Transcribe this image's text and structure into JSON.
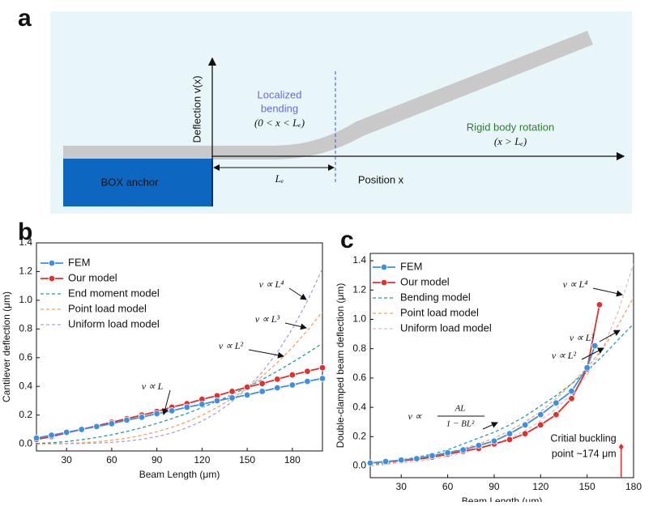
{
  "panel_a": {
    "label": "a",
    "anchor": "BOX anchor",
    "y_axis": "Deflection v(x)",
    "x_axis": "Position x",
    "length": "Lₑ",
    "local_title": [
      "Localized",
      "bending"
    ],
    "local_cond": "(0 < x < Lₑ)",
    "rigid_title": "Rigid body rotation",
    "rigid_cond": "(x > Lₑ)"
  },
  "chart_data": [
    {
      "type": "line",
      "label": "b",
      "x_label": "Beam Length (μm)",
      "y_label": "Cantilever deflection (μm)",
      "xlim": [
        10,
        200
      ],
      "ylim": [
        -0.05,
        1.4
      ],
      "xticks": [
        30,
        60,
        90,
        120,
        150,
        180
      ],
      "yticks": [
        {
          "value": 0,
          "label": "0.0"
        },
        0.2,
        0.4,
        0.6,
        0.8,
        {
          "value": 1,
          "label": "1.0"
        },
        1.2,
        1.4
      ],
      "legend": "upper-left",
      "series": [
        {
          "name": "FEM",
          "color": "#3d8fe0",
          "marker": true,
          "dash": false,
          "x": [
            10,
            20,
            30,
            40,
            50,
            60,
            70,
            80,
            90,
            100,
            110,
            120,
            130,
            140,
            150,
            160,
            170,
            180,
            190,
            200
          ],
          "values": [
            0.04,
            0.06,
            0.08,
            0.1,
            0.12,
            0.14,
            0.165,
            0.185,
            0.21,
            0.23,
            0.255,
            0.275,
            0.3,
            0.32,
            0.34,
            0.365,
            0.39,
            0.41,
            0.435,
            0.455
          ]
        },
        {
          "name": "Our model",
          "color": "#e0312f",
          "marker": true,
          "dash": false,
          "x": [
            10,
            20,
            30,
            40,
            50,
            60,
            70,
            80,
            90,
            100,
            110,
            120,
            130,
            140,
            150,
            160,
            170,
            180,
            190,
            200
          ],
          "values": [
            0.03,
            0.05,
            0.075,
            0.1,
            0.125,
            0.15,
            0.175,
            0.2,
            0.225,
            0.255,
            0.28,
            0.31,
            0.335,
            0.365,
            0.395,
            0.42,
            0.45,
            0.48,
            0.505,
            0.53
          ]
        },
        {
          "name": "End  moment model",
          "color": "#2a9d8f",
          "marker": false,
          "dash": true,
          "x": [
            10,
            20,
            30,
            40,
            50,
            60,
            70,
            80,
            90,
            100,
            110,
            120,
            130,
            140,
            150,
            160,
            170,
            180,
            190,
            200
          ],
          "values": [
            0.002,
            0.007,
            0.016,
            0.028,
            0.044,
            0.063,
            0.086,
            0.112,
            0.142,
            0.175,
            0.212,
            0.252,
            0.296,
            0.343,
            0.394,
            0.448,
            0.506,
            0.567,
            0.632,
            0.7
          ]
        },
        {
          "name": "Point load model",
          "color": "#f4a261",
          "marker": false,
          "dash": true,
          "x": [
            10,
            20,
            30,
            40,
            50,
            60,
            70,
            80,
            90,
            100,
            110,
            120,
            130,
            140,
            150,
            160,
            170,
            180,
            190,
            200
          ],
          "values": [
            0,
            0.001,
            0.003,
            0.007,
            0.014,
            0.025,
            0.039,
            0.059,
            0.084,
            0.115,
            0.153,
            0.199,
            0.253,
            0.316,
            0.388,
            0.471,
            0.565,
            0.671,
            0.789,
            0.92
          ]
        },
        {
          "name": "Uniform load model",
          "color": "#a9a3d6",
          "marker": false,
          "dash": true,
          "x": [
            10,
            20,
            30,
            40,
            50,
            60,
            70,
            80,
            90,
            100,
            110,
            120,
            130,
            140,
            150,
            160,
            170,
            180,
            190,
            200
          ],
          "values": [
            0,
            0,
            0.001,
            0.002,
            0.005,
            0.01,
            0.018,
            0.031,
            0.05,
            0.076,
            0.112,
            0.158,
            0.218,
            0.293,
            0.386,
            0.5,
            0.637,
            0.8,
            0.994,
            1.22
          ]
        }
      ],
      "annotations": [
        "v ∝ L",
        "v ∝ L²",
        "v ∝ L³",
        "v ∝ L⁴"
      ]
    },
    {
      "type": "line",
      "label": "c",
      "x_label": "Beam Length (μm)",
      "y_label": "Double-clamped beam deflection (μm)",
      "xlim": [
        10,
        180
      ],
      "ylim": [
        -0.08,
        1.45
      ],
      "xticks": [
        30,
        60,
        90,
        120,
        150,
        180
      ],
      "yticks": [
        {
          "value": 0,
          "label": "0.0"
        },
        0.2,
        0.4,
        0.6,
        0.8,
        {
          "value": 1,
          "label": "1.0"
        },
        1.2,
        1.4
      ],
      "legend": "upper-left",
      "series": [
        {
          "name": "FEM",
          "color": "#3d8fe0",
          "marker": true,
          "dash": false,
          "x": [
            10,
            20,
            30,
            40,
            50,
            60,
            70,
            80,
            90,
            100,
            110,
            120,
            130,
            140,
            150,
            155
          ],
          "values": [
            0.02,
            0.03,
            0.04,
            0.05,
            0.07,
            0.09,
            0.11,
            0.14,
            0.17,
            0.22,
            0.28,
            0.35,
            0.43,
            0.51,
            0.67,
            0.82
          ]
        },
        {
          "name": "Our model",
          "color": "#e0312f",
          "marker": true,
          "dash": false,
          "x": [
            10,
            20,
            30,
            40,
            50,
            60,
            70,
            80,
            90,
            100,
            110,
            120,
            130,
            140,
            150,
            158
          ],
          "values": [
            0.02,
            0.03,
            0.035,
            0.045,
            0.06,
            0.08,
            0.1,
            0.12,
            0.15,
            0.18,
            0.22,
            0.28,
            0.35,
            0.46,
            0.66,
            1.1
          ]
        },
        {
          "name": "Bending model",
          "color": "#2a9d8f",
          "marker": false,
          "dash": true,
          "x": [
            10,
            20,
            30,
            40,
            50,
            60,
            70,
            80,
            90,
            100,
            110,
            120,
            130,
            140,
            150,
            160,
            170,
            180
          ],
          "values": [
            0.01,
            0.02,
            0.04,
            0.06,
            0.08,
            0.11,
            0.15,
            0.19,
            0.23,
            0.28,
            0.34,
            0.41,
            0.48,
            0.56,
            0.65,
            0.75,
            0.86,
            0.97
          ]
        },
        {
          "name": "Point load model",
          "color": "#f4a261",
          "marker": false,
          "dash": true,
          "x": [
            10,
            20,
            30,
            40,
            50,
            60,
            70,
            80,
            90,
            100,
            110,
            120,
            130,
            140,
            150,
            160,
            170,
            180
          ],
          "values": [
            0.01,
            0.015,
            0.03,
            0.045,
            0.065,
            0.09,
            0.12,
            0.15,
            0.19,
            0.24,
            0.3,
            0.37,
            0.46,
            0.56,
            0.67,
            0.8,
            0.96,
            1.15
          ]
        },
        {
          "name": "Uniform load model",
          "color": "#e3bcc4",
          "marker": false,
          "dash": true,
          "x": [
            10,
            20,
            30,
            40,
            50,
            60,
            70,
            80,
            90,
            100,
            110,
            120,
            130,
            140,
            150,
            160,
            170,
            180
          ],
          "values": [
            0,
            0.01,
            0.02,
            0.03,
            0.045,
            0.065,
            0.09,
            0.12,
            0.15,
            0.19,
            0.24,
            0.31,
            0.39,
            0.49,
            0.62,
            0.8,
            1.05,
            1.38
          ]
        }
      ],
      "annotations": [
        "v ∝ L⁴",
        "v ∝ L³",
        "v ∝ L²"
      ],
      "fraction_annotation": {
        "prefix": "v ∝",
        "numerator": "AL",
        "denominator": "1 − BL²"
      },
      "buckling": {
        "x": 172,
        "y": 0.13,
        "text": [
          "Critial buckling",
          "point ~174 μm"
        ]
      }
    }
  ]
}
